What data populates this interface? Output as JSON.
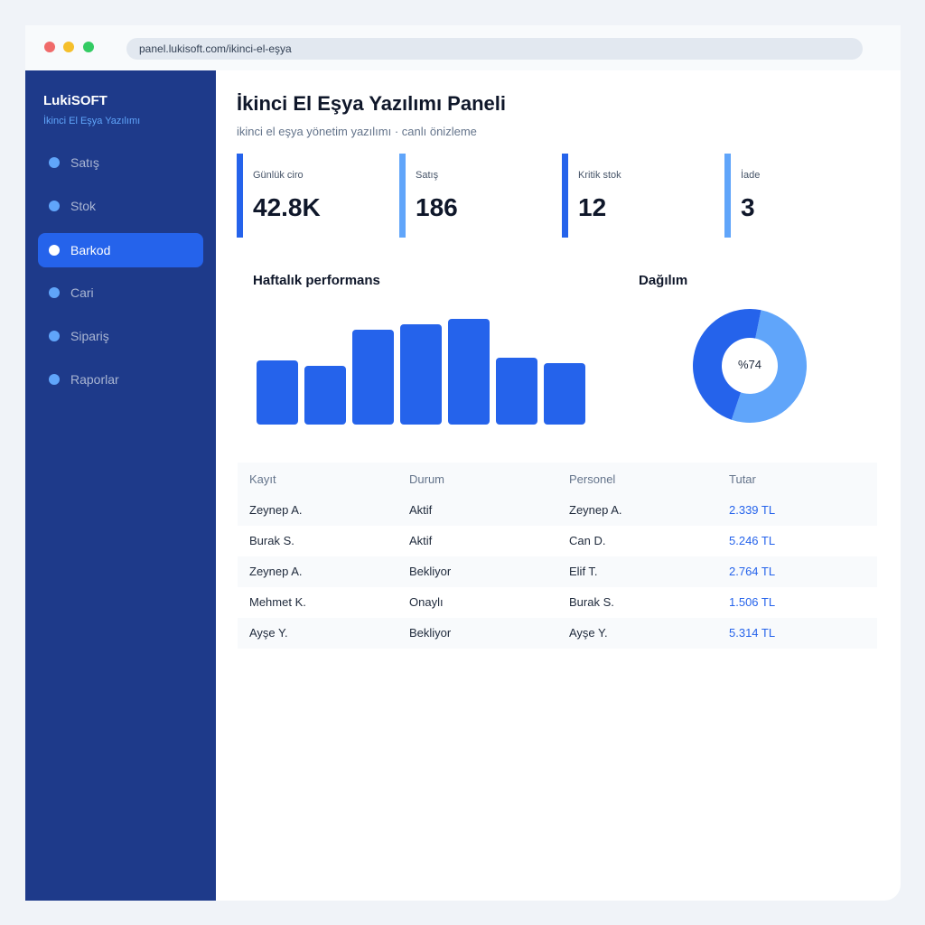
{
  "browser": {
    "url": "panel.lukisoft.com/ikinci-el-eşya"
  },
  "sidebar": {
    "brand": "LukiSOFT",
    "subtitle": "İkinci El Eşya Yazılımı",
    "items": [
      {
        "label": "Satış"
      },
      {
        "label": "Stok"
      },
      {
        "label": "Barkod",
        "active": true
      },
      {
        "label": "Cari"
      },
      {
        "label": "Sipariş"
      },
      {
        "label": "Raporlar"
      }
    ]
  },
  "header": {
    "title": "İkinci El Eşya Yazılımı Paneli",
    "subtitle": "ikinci el eşya yönetim yazılımı · canlı önizleme"
  },
  "stats": [
    {
      "label": "Günlük ciro",
      "value": "42.8K",
      "color": "#2563eb"
    },
    {
      "label": "Satış",
      "value": "186",
      "color": "#60a5fa"
    },
    {
      "label": "Kritik stok",
      "value": "12",
      "color": "#2563eb"
    },
    {
      "label": "İade",
      "value": "3",
      "color": "#60a5fa"
    }
  ],
  "charts": {
    "performance_title": "Haftalık performans",
    "distribution_title": "Dağılım",
    "donut_label": "%74"
  },
  "chart_data": [
    {
      "type": "bar",
      "title": "Haftalık performans",
      "values": [
        58,
        53,
        86,
        91,
        96,
        61,
        56
      ],
      "ylim": [
        0,
        100
      ],
      "color": "#2563eb"
    },
    {
      "type": "pie",
      "title": "Dağılım",
      "values": [
        52,
        48
      ],
      "colors": [
        "#60a5fa",
        "#2563eb"
      ],
      "center_label": "%74"
    }
  ],
  "table": {
    "headers": [
      "Kayıt",
      "Durum",
      "Personel",
      "Tutar"
    ],
    "rows": [
      [
        "Zeynep A.",
        "Aktif",
        "Zeynep A.",
        "2.339 TL"
      ],
      [
        "Burak S.",
        "Aktif",
        "Can D.",
        "5.246 TL"
      ],
      [
        "Zeynep A.",
        "Bekliyor",
        "Elif T.",
        "2.764 TL"
      ],
      [
        "Mehmet K.",
        "Onaylı",
        "Burak S.",
        "1.506 TL"
      ],
      [
        "Ayşe Y.",
        "Bekliyor",
        "Ayşe Y.",
        "5.314 TL"
      ]
    ]
  },
  "colors": {
    "sidebar_bg": "#1e3a8a",
    "accent": "#2563eb",
    "accent_light": "#60a5fa"
  }
}
